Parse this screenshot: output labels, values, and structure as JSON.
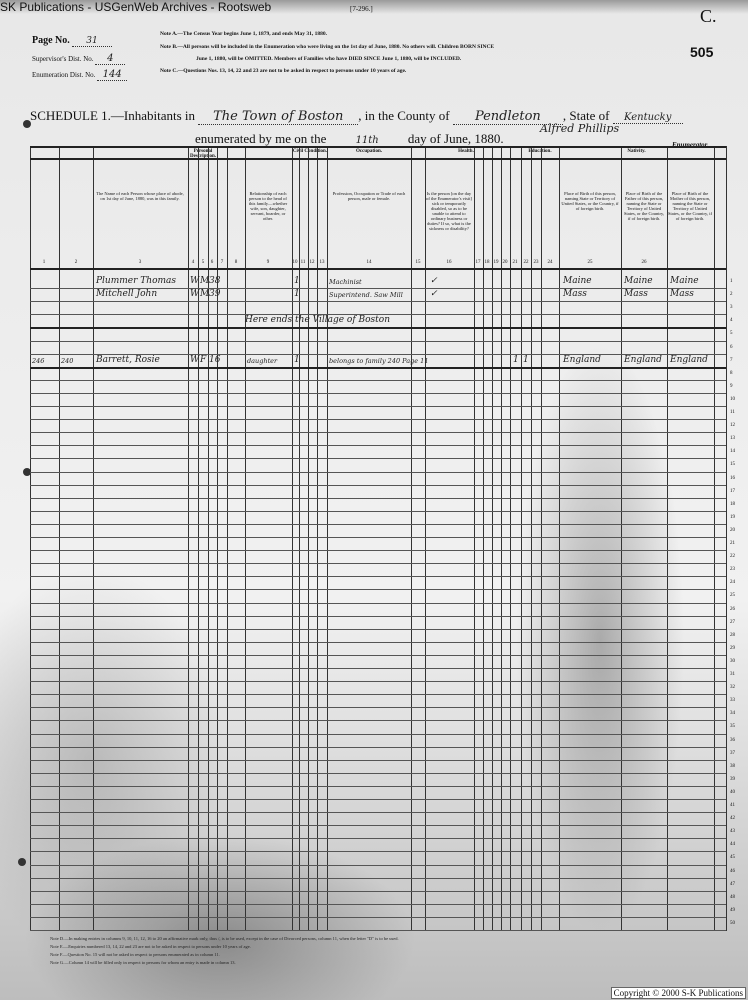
{
  "browser_title": "SK Publications - USGenWeb Archives - Rootsweb",
  "form_number": "[7-296.]",
  "corner_letter": "C.",
  "sheet_number": "505",
  "header": {
    "page_no_label": "Page No.",
    "page_no": "31",
    "supervisor_label": "Supervisor's Dist. No.",
    "supervisor": "4",
    "enumeration_label": "Enumeration Dist. No.",
    "enumeration": "144"
  },
  "notes": [
    "Note A.—The Census Year begins June 1, 1879, and ends May 31, 1880.",
    "Note B.—All persons will be included in the Enumeration who were living on the 1st day of June, 1880. No others will. Children BORN SINCE",
    "June 1, 1880, will be OMITTED. Members of Families who have DIED SINCE June 1, 1880, will be INCLUDED.",
    "Note C.—Questions Nos. 13, 14, 22 and 23 are not to be asked in respect to persons under 10 years of age."
  ],
  "schedule": {
    "label": "SCHEDULE 1.—Inhabitants in",
    "place": "The Town of Boston",
    "county_label": ", in the County of",
    "county": "Pendleton",
    "state_label": ", State of",
    "state": "Kentucky",
    "enum_label": "enumerated by me on the",
    "day": "11th",
    "date_suffix": "day of June, 1880.",
    "enumerator_signature": "Alfred Phillips",
    "enumerator_label": "Enumerator."
  },
  "column_groups": [
    "Personal Description.",
    "Civil Condition.",
    "Occupation.",
    "Health.",
    "Education.",
    "Nativity."
  ],
  "column_headers": {
    "name": "The Name of each Person whose place of abode, on 1st day of June, 1880, was in this family.",
    "relationship": "Relationship of each person to the head of this family—whether wife, son, daughter, servant, boarder, or other.",
    "occupation": "Profession, Occupation or Trade of each person, male or female.",
    "sickness": "Is the person [on the day of the Enumerator's visit] sick or temporarily disabled, so as to be unable to attend to ordinary business or duties? If so, what is the sickness or disability?",
    "birthplace": "Place of Birth of this person, naming State or Territory of United States, or the Country, if of foreign birth.",
    "father_birthplace": "Place of Birth of the Father of this person, naming the State or Territory of United States, or the Country, if of foreign birth.",
    "mother_birthplace": "Place of Birth of the Mother of this person, naming the State or Territory of United States, or the Country, if of foreign birth."
  },
  "column_numbers": [
    "1",
    "2",
    "3",
    "4",
    "5",
    "6",
    "7",
    "8",
    "9",
    "10",
    "11",
    "12",
    "13",
    "14",
    "15",
    "16",
    "17",
    "18",
    "19",
    "20",
    "21",
    "22",
    "23",
    "24",
    "25",
    "26"
  ],
  "entries": [
    {
      "row": 1,
      "name": "Plummer Thomas",
      "color": "W",
      "sex": "M",
      "age": "38",
      "civil": "1",
      "occupation": "Machinist",
      "sick": "✓",
      "birthplace": "Maine",
      "father": "Maine",
      "mother": "Maine"
    },
    {
      "row": 2,
      "name": "Mitchell John",
      "color": "W",
      "sex": "M",
      "age": "39",
      "civil": "1",
      "occupation": "Superintend. Saw Mill",
      "sick": "✓",
      "birthplace": "Mass",
      "father": "Mass",
      "mother": "Mass"
    },
    {
      "row": 4,
      "remark": "Here ends the Village of Boston"
    },
    {
      "row": 7,
      "dwelling": "246",
      "family": "240",
      "name": "Barrett, Rosie",
      "color": "W",
      "sex": "F",
      "age": "16",
      "relationship": "daughter",
      "civil": "1",
      "occupation": "belongs to family 240 Page 11",
      "edu1": "1",
      "edu2": "1",
      "birthplace": "England",
      "father": "England",
      "mother": "England"
    }
  ],
  "row_numbers": [
    "1",
    "2",
    "3",
    "4",
    "5",
    "6",
    "7",
    "8",
    "9",
    "10",
    "11",
    "12",
    "13",
    "14",
    "15",
    "16",
    "17",
    "18",
    "19",
    "20",
    "21",
    "22",
    "23",
    "24",
    "25",
    "26",
    "27",
    "28",
    "29",
    "30",
    "31",
    "32",
    "33",
    "34",
    "35",
    "36",
    "37",
    "38",
    "39",
    "40",
    "41",
    "42",
    "43",
    "44",
    "45",
    "46",
    "47",
    "48",
    "49",
    "50"
  ],
  "footnotes": [
    "Note D.—In making entries in columns 9, 10, 11, 12, 16 to 20 an affirmative mark only, thus /, is to be used, except in the case of Divorced persons, column 11, when the letter \"D\" is to be used.",
    "Note E.—Enquiries numbered 13, 14, 22 and 23 are not to be asked in respect to persons under 10 years of age.",
    "Note F.—Question No. 15 will not be asked in respect to persons enumerated as in column 11.",
    "Note G.—Column 14 will be filled only in respect to persons for whom an entry is made in column 13."
  ],
  "copyright": "Copyright © 2000 S-K Publications"
}
